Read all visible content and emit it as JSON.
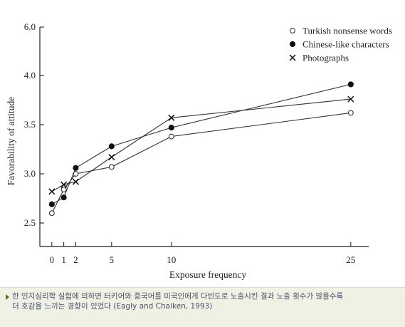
{
  "chart_data": {
    "type": "line",
    "xlabel": "Exposure frequency",
    "ylabel": "Favorability of attitude",
    "xlim": [
      -1,
      26.5
    ],
    "ylim": [
      2.2,
      6.0
    ],
    "x_ticks": [
      0,
      1,
      2,
      5,
      10,
      25
    ],
    "y_ticks": [
      2.5,
      3.0,
      3.5,
      4.0,
      6.0
    ],
    "y_tick_labels": [
      "2.5",
      "3.0",
      "3.5",
      "4.0",
      "6.0"
    ],
    "legend_position": "top-right",
    "grid": false,
    "series": [
      {
        "name": "Turkish nonsense words",
        "marker": "open-circle",
        "x": [
          0,
          1,
          2,
          5,
          10,
          25
        ],
        "values": [
          2.6,
          2.84,
          3.0,
          3.07,
          3.38,
          3.62
        ]
      },
      {
        "name": "Chinese-like characters",
        "marker": "filled-circle",
        "x": [
          0,
          1,
          2,
          5,
          10,
          25
        ],
        "values": [
          2.69,
          2.76,
          3.06,
          3.28,
          3.47,
          3.91
        ]
      },
      {
        "name": "Photographs",
        "marker": "x",
        "x": [
          0,
          1,
          2,
          5,
          10,
          25
        ],
        "values": [
          2.82,
          2.89,
          2.92,
          3.17,
          3.57,
          3.76
        ]
      }
    ]
  },
  "caption": {
    "text": "한 인지심리학 실험에 의하면 터키어와 중국어를 미국인에게 다빈도로 노출시킨 결과 노출 횟수가 많을수록\n더 호감을 느끼는 경향이 있었다 (Eagly and Chaiken, 1993)"
  }
}
